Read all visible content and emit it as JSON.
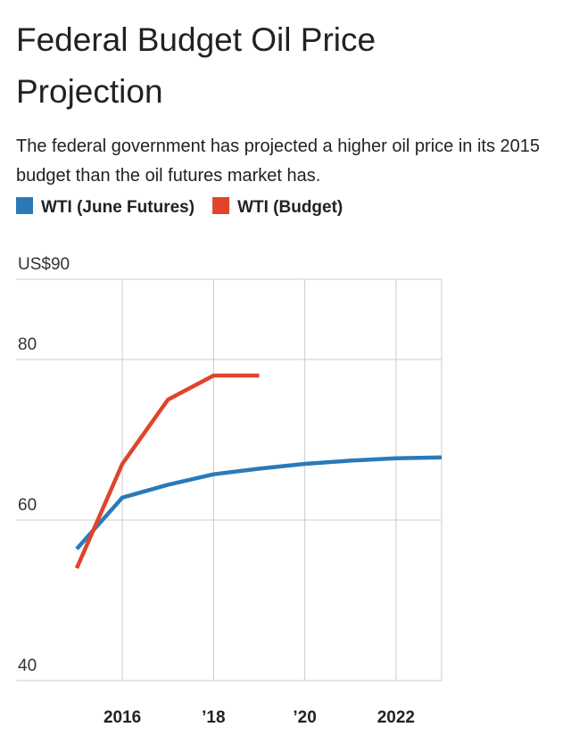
{
  "chart_data": {
    "type": "line",
    "title": "Federal Budget Oil Price Projection",
    "subtitle": "The federal government has projected a higher oil price in its 2015 budget than the oil futures market has.",
    "x": [
      2015,
      2016,
      2017,
      2018,
      2019,
      2020,
      2021,
      2022,
      2023
    ],
    "series": [
      {
        "name": "WTI (June Futures)",
        "color": "#2a7ab9",
        "values": [
          56.4,
          62.8,
          64.4,
          65.7,
          66.4,
          67.0,
          67.4,
          67.7,
          67.8
        ]
      },
      {
        "name": "WTI (Budget)",
        "color": "#e0442b",
        "values": [
          54,
          67,
          75,
          78,
          78,
          null,
          null,
          null,
          null
        ]
      }
    ],
    "xlim": [
      2013.67,
      2023
    ],
    "xticks": [
      2016,
      {
        "value": 2018,
        "label": "’18"
      },
      {
        "value": 2020,
        "label": "’20"
      },
      2022
    ],
    "ylim": [
      40,
      90
    ],
    "yticks": [
      40,
      60,
      80,
      {
        "value": 90,
        "label": "US$90"
      }
    ],
    "grid": true
  }
}
